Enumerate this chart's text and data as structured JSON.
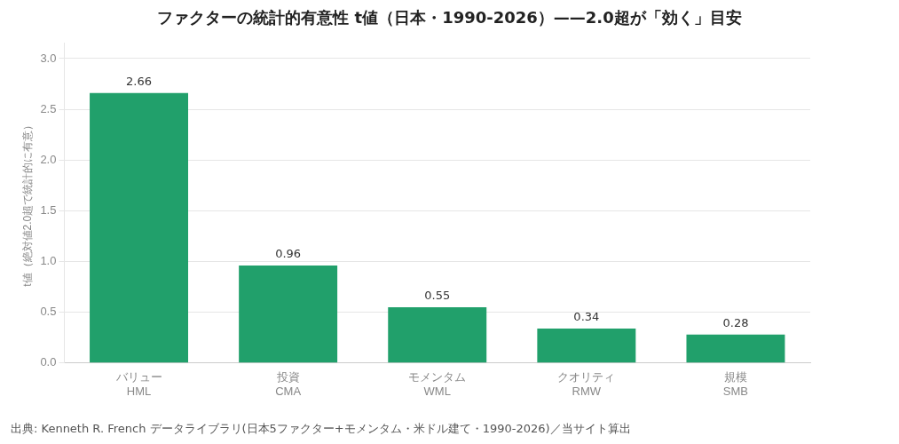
{
  "chart_data": {
    "type": "bar",
    "title": "ファクターの統計的有意性 t値（日本・1990-2026）——2.0超が「効く」目安",
    "ylabel": "t値（絶対値2.0超で統計的に有意）",
    "categories": [
      "バリュー\nHML",
      "投資\nCMA",
      "モメンタム\nWML",
      "クオリティ\nRMW",
      "規模\nSMB"
    ],
    "values": [
      2.66,
      0.96,
      0.55,
      0.34,
      0.28
    ],
    "color": "#21a06b",
    "ylim": [
      0,
      3.15
    ],
    "yticks": [
      {
        "value": 0,
        "label": "0.0"
      },
      {
        "value": 0.5,
        "label": "0.5"
      },
      {
        "value": 1,
        "label": "1.0"
      },
      {
        "value": 1.5,
        "label": "1.5"
      },
      {
        "value": 2,
        "label": "2.0"
      },
      {
        "value": 2.5,
        "label": "2.5"
      },
      {
        "value": 3,
        "label": "3.0"
      }
    ],
    "grid": "y",
    "data_labels": true,
    "annotations": [
      "出典: Kenneth R. French データライブラリ(日本5ファクター+モメンタム・米ドル建て・1990-2026)／当サイト算出"
    ]
  }
}
